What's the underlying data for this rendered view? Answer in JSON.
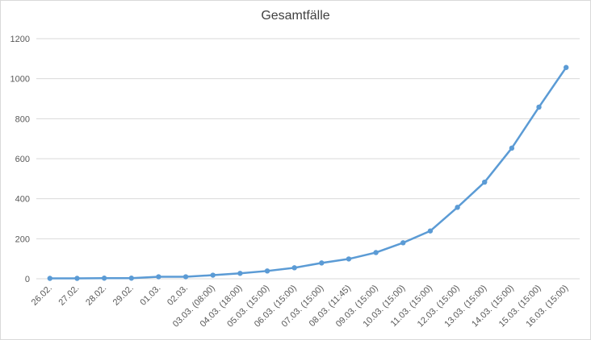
{
  "chart_data": {
    "type": "line",
    "title": "Gesamtfälle",
    "categories": [
      "26.02.",
      "27.02.",
      "28.02.",
      "29.02.",
      "01.03.",
      "02.03.",
      "03.03. (08:00)",
      "04.03. (18:00)",
      "05.03. (15:00)",
      "06.03. (15:00)",
      "07.03. (15:00)",
      "08.03. (11:45)",
      "09.03. (15:00)",
      "10.03. (15:00)",
      "11.03. (15:00)",
      "12.03. (15:00)",
      "13.03. (15:00)",
      "14.03. (15:00)",
      "15.03. (15:00)",
      "16.03. (15:00)"
    ],
    "values": [
      2,
      2,
      3,
      3,
      10,
      10,
      18,
      27,
      39,
      55,
      79,
      99,
      131,
      180,
      239,
      357,
      483,
      653,
      858,
      1056
    ],
    "color": "#5b9bd5",
    "ylim": [
      0,
      1200
    ],
    "yticks": [
      0,
      200,
      400,
      600,
      800,
      1000,
      1200
    ],
    "grid": true
  }
}
